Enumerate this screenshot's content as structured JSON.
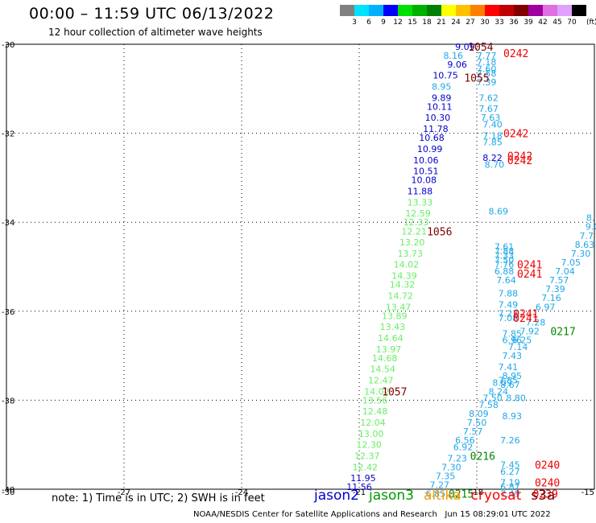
{
  "header": {
    "title": "00:00 – 11:59 UTC 06/13/2022",
    "subtitle": "12 hour collection of altimeter wave heights"
  },
  "colorbar": {
    "colors": [
      "#808080",
      "#00e0ff",
      "#00b0ff",
      "#0000ff",
      "#00e000",
      "#00b000",
      "#008000",
      "#ffff00",
      "#ffc000",
      "#ff8000",
      "#ff0000",
      "#c00000",
      "#800000",
      "#a000a0",
      "#e070e0",
      "#e0a0ff",
      "#000000"
    ],
    "ticks": [
      "3",
      "6",
      "9",
      "12",
      "15",
      "18",
      "21",
      "24",
      "27",
      "30",
      "33",
      "36",
      "39",
      "42",
      "45",
      "70"
    ],
    "unit": "(ft)"
  },
  "note": "note: 1) Time is in UTC; 2) SWH is in feet",
  "legend": [
    {
      "name": "jason2",
      "color": "#0000cc"
    },
    {
      "name": "jason3",
      "color": "#009900"
    },
    {
      "name": "altika",
      "color": "#ff9900"
    },
    {
      "name": "cryosat",
      "color": "#ff0000"
    },
    {
      "name": "s3a",
      "color": "#800000"
    }
  ],
  "footer": "NOAA/NESDIS Center for Satellite Applications and Research   Jun 15 08:29:01 UTC 2022",
  "chart_data": {
    "type": "scatter",
    "xlim": [
      -30,
      -15
    ],
    "ylim": [
      -40,
      -30
    ],
    "xticks": [
      "-30",
      "-27",
      "-24",
      "-21",
      "-18",
      "-15"
    ],
    "yticks": [
      "-30",
      "-32",
      "-34",
      "-36",
      "-38",
      "-40"
    ],
    "grid": "dotted",
    "colors": {
      "blue": "#0000cc",
      "light": "#66ee66",
      "cyan": "#1ea7e8",
      "s3a": "#800000",
      "cryosat": "#ee0000",
      "jason3": "#008800"
    },
    "points": [
      {
        "x": -18.3,
        "y": -30.05,
        "v": "9.09",
        "c": "blue"
      },
      {
        "x": -18.6,
        "y": -30.25,
        "v": "8.16",
        "c": "cyan"
      },
      {
        "x": -18.5,
        "y": -30.45,
        "v": "9.06",
        "c": "blue"
      },
      {
        "x": -18.8,
        "y": -30.7,
        "v": "10.75",
        "c": "blue"
      },
      {
        "x": -18.9,
        "y": -30.95,
        "v": "8.95",
        "c": "cyan"
      },
      {
        "x": -18.9,
        "y": -31.2,
        "v": "9.89",
        "c": "blue"
      },
      {
        "x": -18.95,
        "y": -31.4,
        "v": "10.11",
        "c": "blue"
      },
      {
        "x": -19.0,
        "y": -31.65,
        "v": "10.30",
        "c": "blue"
      },
      {
        "x": -19.05,
        "y": -31.9,
        "v": "11.78",
        "c": "blue"
      },
      {
        "x": -19.15,
        "y": -32.1,
        "v": "10.68",
        "c": "blue"
      },
      {
        "x": -19.2,
        "y": -32.35,
        "v": "10.99",
        "c": "blue"
      },
      {
        "x": -19.3,
        "y": -32.6,
        "v": "10.06",
        "c": "blue"
      },
      {
        "x": -19.3,
        "y": -32.85,
        "v": "10.51",
        "c": "blue"
      },
      {
        "x": -19.35,
        "y": -33.05,
        "v": "10.08",
        "c": "blue"
      },
      {
        "x": -19.45,
        "y": -33.3,
        "v": "11.88",
        "c": "blue"
      },
      {
        "x": -19.45,
        "y": -33.55,
        "v": "13.33",
        "c": "light"
      },
      {
        "x": -19.5,
        "y": -33.8,
        "v": "12.59",
        "c": "light"
      },
      {
        "x": -19.55,
        "y": -34.0,
        "v": "12.33",
        "c": "light"
      },
      {
        "x": -19.6,
        "y": -34.2,
        "v": "12.21",
        "c": "light"
      },
      {
        "x": -19.65,
        "y": -34.45,
        "v": "13.20",
        "c": "light"
      },
      {
        "x": -19.7,
        "y": -34.7,
        "v": "13.73",
        "c": "light"
      },
      {
        "x": -19.8,
        "y": -34.95,
        "v": "14.02",
        "c": "light"
      },
      {
        "x": -19.85,
        "y": -35.2,
        "v": "14.39",
        "c": "light"
      },
      {
        "x": -19.9,
        "y": -35.4,
        "v": "14.32",
        "c": "light"
      },
      {
        "x": -19.95,
        "y": -35.65,
        "v": "14.72",
        "c": "light"
      },
      {
        "x": -20.0,
        "y": -35.9,
        "v": "13.47",
        "c": "light"
      },
      {
        "x": -20.1,
        "y": -36.1,
        "v": "13.89",
        "c": "light"
      },
      {
        "x": -20.15,
        "y": -36.35,
        "v": "13.43",
        "c": "light"
      },
      {
        "x": -20.2,
        "y": -36.6,
        "v": "14.64",
        "c": "light"
      },
      {
        "x": -20.25,
        "y": -36.85,
        "v": "13.97",
        "c": "light"
      },
      {
        "x": -20.35,
        "y": -37.05,
        "v": "14.68",
        "c": "light"
      },
      {
        "x": -20.4,
        "y": -37.3,
        "v": "14.54",
        "c": "light"
      },
      {
        "x": -20.45,
        "y": -37.55,
        "v": "12.47",
        "c": "light"
      },
      {
        "x": -20.55,
        "y": -37.8,
        "v": "14.02",
        "c": "light"
      },
      {
        "x": -20.6,
        "y": -38.0,
        "v": "13.56",
        "c": "light"
      },
      {
        "x": -20.6,
        "y": -38.25,
        "v": "12.48",
        "c": "light"
      },
      {
        "x": -20.65,
        "y": -38.5,
        "v": "12.04",
        "c": "light"
      },
      {
        "x": -20.7,
        "y": -38.75,
        "v": "13.00",
        "c": "light"
      },
      {
        "x": -20.75,
        "y": -39.0,
        "v": "12.30",
        "c": "light"
      },
      {
        "x": -20.8,
        "y": -39.25,
        "v": "12.37",
        "c": "light"
      },
      {
        "x": -20.85,
        "y": -39.5,
        "v": "12.42",
        "c": "light"
      },
      {
        "x": -20.9,
        "y": -39.75,
        "v": "11.95",
        "c": "blue"
      },
      {
        "x": -21.0,
        "y": -39.95,
        "v": "11.56",
        "c": "blue"
      },
      {
        "x": -17.75,
        "y": -30.25,
        "v": "7.77",
        "c": "cyan"
      },
      {
        "x": -17.75,
        "y": -30.4,
        "v": "7.18",
        "c": "cyan"
      },
      {
        "x": -17.75,
        "y": -30.55,
        "v": "7.60",
        "c": "cyan"
      },
      {
        "x": -17.75,
        "y": -30.65,
        "v": "7.58",
        "c": "cyan"
      },
      {
        "x": -17.75,
        "y": -30.85,
        "v": "7.39",
        "c": "cyan"
      },
      {
        "x": -17.7,
        "y": -31.2,
        "v": "7.62",
        "c": "cyan"
      },
      {
        "x": -17.7,
        "y": -31.45,
        "v": "7.67",
        "c": "cyan"
      },
      {
        "x": -17.65,
        "y": -31.65,
        "v": "7.63",
        "c": "cyan"
      },
      {
        "x": -17.6,
        "y": -31.8,
        "v": "7.40",
        "c": "cyan"
      },
      {
        "x": -17.6,
        "y": -32.05,
        "v": "7.18",
        "c": "cyan"
      },
      {
        "x": -17.6,
        "y": -32.2,
        "v": "7.85",
        "c": "cyan"
      },
      {
        "x": -17.6,
        "y": -32.55,
        "v": "8.22",
        "c": "blue"
      },
      {
        "x": -17.55,
        "y": -32.7,
        "v": "8.70",
        "c": "cyan"
      },
      {
        "x": -17.45,
        "y": -33.75,
        "v": "8.69",
        "c": "cyan"
      },
      {
        "x": -15.1,
        "y": -33.9,
        "v": "8.",
        "c": "cyan"
      },
      {
        "x": -15.05,
        "y": -34.1,
        "v": "9.0",
        "c": "cyan"
      },
      {
        "x": -15.2,
        "y": -34.3,
        "v": "7.7",
        "c": "cyan"
      },
      {
        "x": -15.25,
        "y": -34.5,
        "v": "8.63",
        "c": "cyan"
      },
      {
        "x": -15.35,
        "y": -34.7,
        "v": "7.30",
        "c": "cyan"
      },
      {
        "x": -15.6,
        "y": -34.9,
        "v": "7.05",
        "c": "cyan"
      },
      {
        "x": -15.75,
        "y": -35.1,
        "v": "7.04",
        "c": "cyan"
      },
      {
        "x": -15.9,
        "y": -35.3,
        "v": "7.57",
        "c": "cyan"
      },
      {
        "x": -16.0,
        "y": -35.5,
        "v": "7.39",
        "c": "cyan"
      },
      {
        "x": -16.1,
        "y": -35.7,
        "v": "7.16",
        "c": "cyan"
      },
      {
        "x": -16.25,
        "y": -35.9,
        "v": "6.97",
        "c": "cyan"
      },
      {
        "x": -16.5,
        "y": -36.25,
        "v": "7.28",
        "c": "cyan"
      },
      {
        "x": -16.65,
        "y": -36.45,
        "v": "7.92",
        "c": "cyan"
      },
      {
        "x": -16.85,
        "y": -36.65,
        "v": "6.25",
        "c": "cyan"
      },
      {
        "x": -16.95,
        "y": -36.8,
        "v": "7.14",
        "c": "cyan"
      },
      {
        "x": -17.1,
        "y": -37.0,
        "v": "7.43",
        "c": "cyan"
      },
      {
        "x": -17.2,
        "y": -37.25,
        "v": "7.41",
        "c": "cyan"
      },
      {
        "x": -17.1,
        "y": -37.45,
        "v": "8.95",
        "c": "cyan"
      },
      {
        "x": -17.2,
        "y": -37.55,
        "v": "7.85",
        "c": "cyan"
      },
      {
        "x": -17.15,
        "y": -37.65,
        "v": "8.67",
        "c": "cyan"
      },
      {
        "x": -17.35,
        "y": -37.6,
        "v": "8.09",
        "c": "cyan"
      },
      {
        "x": -17.45,
        "y": -37.8,
        "v": "8.24",
        "c": "cyan"
      },
      {
        "x": -17.0,
        "y": -37.95,
        "v": "8.80",
        "c": "cyan"
      },
      {
        "x": -17.6,
        "y": -37.95,
        "v": "7.50",
        "c": "cyan"
      },
      {
        "x": -17.7,
        "y": -38.1,
        "v": "7.58",
        "c": "cyan"
      },
      {
        "x": -17.95,
        "y": -38.3,
        "v": "8.09",
        "c": "cyan"
      },
      {
        "x": -17.1,
        "y": -38.35,
        "v": "8.93",
        "c": "cyan"
      },
      {
        "x": -18.0,
        "y": -38.5,
        "v": "7.50",
        "c": "cyan"
      },
      {
        "x": -18.1,
        "y": -38.7,
        "v": "7.57",
        "c": "cyan"
      },
      {
        "x": -18.3,
        "y": -38.9,
        "v": "6.56",
        "c": "cyan"
      },
      {
        "x": -18.35,
        "y": -39.05,
        "v": "6.92",
        "c": "cyan"
      },
      {
        "x": -17.15,
        "y": -38.9,
        "v": "7.26",
        "c": "cyan"
      },
      {
        "x": -18.5,
        "y": -39.3,
        "v": "7.23",
        "c": "cyan"
      },
      {
        "x": -18.65,
        "y": -39.5,
        "v": "7.30",
        "c": "cyan"
      },
      {
        "x": -17.15,
        "y": -39.45,
        "v": "7.45",
        "c": "cyan"
      },
      {
        "x": -17.15,
        "y": -39.6,
        "v": "6.27",
        "c": "cyan"
      },
      {
        "x": -18.8,
        "y": -39.7,
        "v": "7.35",
        "c": "cyan"
      },
      {
        "x": -18.95,
        "y": -39.9,
        "v": "7.27",
        "c": "cyan"
      },
      {
        "x": -17.15,
        "y": -39.85,
        "v": "7.19",
        "c": "cyan"
      },
      {
        "x": -17.15,
        "y": -39.95,
        "v": "6.87",
        "c": "cyan"
      },
      {
        "x": -19.05,
        "y": -40.1,
        "v": "6.85",
        "c": "cyan"
      },
      {
        "x": -17.15,
        "y": -40.1,
        "v": "7.49",
        "c": "cyan"
      },
      {
        "x": -17.3,
        "y": -34.55,
        "v": "7.61",
        "c": "cyan"
      },
      {
        "x": -17.3,
        "y": -34.65,
        "v": "7.88",
        "c": "cyan"
      },
      {
        "x": -17.3,
        "y": -34.75,
        "v": "7.33",
        "c": "cyan"
      },
      {
        "x": -17.3,
        "y": -34.85,
        "v": "7.50",
        "c": "cyan"
      },
      {
        "x": -17.3,
        "y": -34.95,
        "v": "7.76",
        "c": "cyan"
      },
      {
        "x": -17.3,
        "y": -35.1,
        "v": "6.88",
        "c": "cyan"
      },
      {
        "x": -17.25,
        "y": -35.3,
        "v": "7.64",
        "c": "cyan"
      },
      {
        "x": -17.2,
        "y": -35.6,
        "v": "7.88",
        "c": "cyan"
      },
      {
        "x": -17.2,
        "y": -35.85,
        "v": "7.49",
        "c": "cyan"
      },
      {
        "x": -17.2,
        "y": -36.05,
        "v": "7.27",
        "c": "cyan"
      },
      {
        "x": -17.2,
        "y": -36.15,
        "v": "7.08",
        "c": "cyan"
      },
      {
        "x": -17.1,
        "y": -36.5,
        "v": "7.85",
        "c": "cyan"
      },
      {
        "x": -17.1,
        "y": -36.65,
        "v": "6.96",
        "c": "cyan"
      }
    ],
    "markers": [
      {
        "x": -17.9,
        "y": -30.05,
        "label": "1054",
        "c": "s3a"
      },
      {
        "x": -17.0,
        "y": -30.2,
        "label": "0242",
        "c": "cryosat"
      },
      {
        "x": -18.0,
        "y": -30.75,
        "label": "1055",
        "c": "s3a"
      },
      {
        "x": -17.0,
        "y": -32.0,
        "label": "0242",
        "c": "cryosat"
      },
      {
        "x": -16.9,
        "y": -32.5,
        "label": "0242",
        "c": "cryosat"
      },
      {
        "x": -16.9,
        "y": -32.6,
        "label": "0242",
        "c": "cryosat"
      },
      {
        "x": -18.95,
        "y": -34.2,
        "label": "1056",
        "c": "s3a"
      },
      {
        "x": -16.65,
        "y": -34.95,
        "label": "0241",
        "c": "cryosat"
      },
      {
        "x": -16.65,
        "y": -35.15,
        "label": "0241",
        "c": "cryosat"
      },
      {
        "x": -16.75,
        "y": -36.05,
        "label": "0241",
        "c": "cryosat"
      },
      {
        "x": -16.75,
        "y": -36.15,
        "label": "0241",
        "c": "cryosat"
      },
      {
        "x": -15.8,
        "y": -36.45,
        "label": "0217",
        "c": "jason3"
      },
      {
        "x": -20.1,
        "y": -37.8,
        "label": "1057",
        "c": "s3a"
      },
      {
        "x": -17.85,
        "y": -39.25,
        "label": "0216",
        "c": "jason3"
      },
      {
        "x": -16.2,
        "y": -39.45,
        "label": "0240",
        "c": "cryosat"
      },
      {
        "x": -16.2,
        "y": -39.85,
        "label": "0240",
        "c": "cryosat"
      },
      {
        "x": -16.25,
        "y": -40.1,
        "label": "0239",
        "c": "cryosat"
      },
      {
        "x": -18.4,
        "y": -40.1,
        "label": "0215",
        "c": "jason3"
      }
    ]
  }
}
